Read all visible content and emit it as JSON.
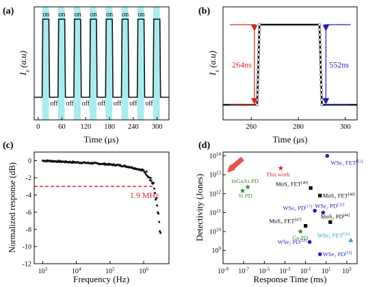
{
  "chart_data": [
    {
      "panel": "(a)",
      "type": "line",
      "xlabel": "Time (μs)",
      "ylabel": "I_s (a.u)",
      "xticks": [
        0,
        60,
        120,
        180,
        240,
        300
      ],
      "xlim": [
        -10,
        330
      ],
      "ylim": [
        0,
        1
      ],
      "on_label": "on",
      "off_label": "off",
      "pulse_period": 40,
      "pulse_width": 17,
      "pulse_starts": [
        10,
        50,
        90,
        130,
        170,
        210,
        250,
        290
      ],
      "on_positions": [
        20,
        60,
        100,
        140,
        180,
        220,
        260
      ],
      "off_positions": [
        40,
        80,
        120,
        160,
        200,
        240,
        280
      ],
      "highlight_color": "#a8ecf2"
    },
    {
      "panel": "(b)",
      "type": "line",
      "xlabel": "Time (μs)",
      "ylabel": "I_s (a.u)",
      "xticks": [
        260,
        280,
        300
      ],
      "xlim": [
        248,
        305
      ],
      "ylim": [
        0,
        1
      ],
      "rise_start": 262.5,
      "rise_end": 263.5,
      "fall_start": 289.0,
      "fall_end": 290.0,
      "rise_label": "264ns",
      "fall_label": "552ns",
      "rise_color": "#d62728",
      "fall_color": "#1f1fbf"
    },
    {
      "panel": "(c)",
      "type": "scatter",
      "xlabel": "Frequency (Hz)",
      "ylabel": "Normalized response (dB)",
      "xlim_log": [
        2.75,
        6.75
      ],
      "ylim": [
        -12,
        1
      ],
      "yticks": [
        0,
        -2,
        -4,
        -6,
        -8,
        -10,
        -12
      ],
      "xticks": [
        "10^3",
        "10^4",
        "10^5",
        "10^6"
      ],
      "cutoff_label": "1.9 MHz",
      "cutoff_y": -3,
      "cutoff_x_log": 6.28,
      "cutoff_color": "#d62728",
      "curve": {
        "log_f": [
          3.0,
          3.5,
          4.0,
          4.5,
          5.0,
          5.3,
          5.6,
          5.8,
          6.0,
          6.1,
          6.2,
          6.3,
          6.35,
          6.4,
          6.45,
          6.5
        ],
        "db": [
          0.0,
          -0.1,
          -0.2,
          -0.3,
          -0.45,
          -0.55,
          -0.75,
          -0.95,
          -1.2,
          -1.5,
          -2.0,
          -3.0,
          -4.0,
          -5.5,
          -7.0,
          -9.0
        ]
      }
    },
    {
      "panel": "(d)",
      "type": "scatter",
      "xlabel": "Response Time (ms)",
      "ylabel": "Detectivity (Jones)",
      "xticks_exp": [
        -9,
        -7,
        -5,
        -3,
        -1,
        1,
        3
      ],
      "yticks_exp": [
        9,
        10,
        11,
        12,
        13,
        14
      ],
      "xlim_exp": [
        -9,
        4
      ],
      "ylim_exp": [
        8.3,
        14.2
      ],
      "arrow_color": "#e8504a",
      "points": [
        {
          "label": "This work",
          "x_exp": -3.4,
          "y_exp": 13.35,
          "marker": "star",
          "color": "#d62728"
        },
        {
          "label": "InGaAs PD",
          "x_exp": -6.6,
          "y_exp": 12.35,
          "marker": "star",
          "color": "#2e8b2e"
        },
        {
          "label": "Si PD",
          "x_exp": -7.1,
          "y_exp": 12.15,
          "marker": "star",
          "color": "#2e8b2e"
        },
        {
          "label": "Ge PD",
          "x_exp": -1.5,
          "y_exp": 10.0,
          "marker": "star",
          "color": "#2e8b2e"
        },
        {
          "label": "WSe₂ FET[51]",
          "x_exp": 1.1,
          "y_exp": 14.0,
          "marker": "circle",
          "color": "#1f1fbf"
        },
        {
          "label": "MoS₂ FET[49]",
          "x_exp": -0.5,
          "y_exp": 12.3,
          "marker": "square",
          "color": "#000000"
        },
        {
          "label": "MoS₂ FET[48]",
          "x_exp": 0.4,
          "y_exp": 11.9,
          "marker": "square",
          "color": "#000000"
        },
        {
          "label": "WSe₂ PD[17]",
          "x_exp": -0.1,
          "y_exp": 11.1,
          "marker": "circle",
          "color": "#1f1fbf"
        },
        {
          "label": "WSe₂ PD[32]",
          "x_exp": 0.7,
          "y_exp": 11.0,
          "marker": "circle",
          "color": "#1f1fbf"
        },
        {
          "label": "MoS₂ PD[46]",
          "x_exp": 1.4,
          "y_exp": 10.5,
          "marker": "square",
          "color": "#000000"
        },
        {
          "label": "MoS₂ FET[47]",
          "x_exp": -1.0,
          "y_exp": 10.3,
          "marker": "square",
          "color": "#000000"
        },
        {
          "label": "WSe₂ PD[29]",
          "x_exp": -0.6,
          "y_exp": 9.45,
          "marker": "circle",
          "color": "#1f1fbf"
        },
        {
          "label": "WSe₂ FET[50]",
          "x_exp": 3.4,
          "y_exp": 9.55,
          "marker": "triangle",
          "color": "#27a0d8"
        },
        {
          "label": "WSe₂ PD[15]",
          "x_exp": 0.4,
          "y_exp": 8.8,
          "marker": "circle",
          "color": "#1f1fbf"
        }
      ]
    }
  ]
}
